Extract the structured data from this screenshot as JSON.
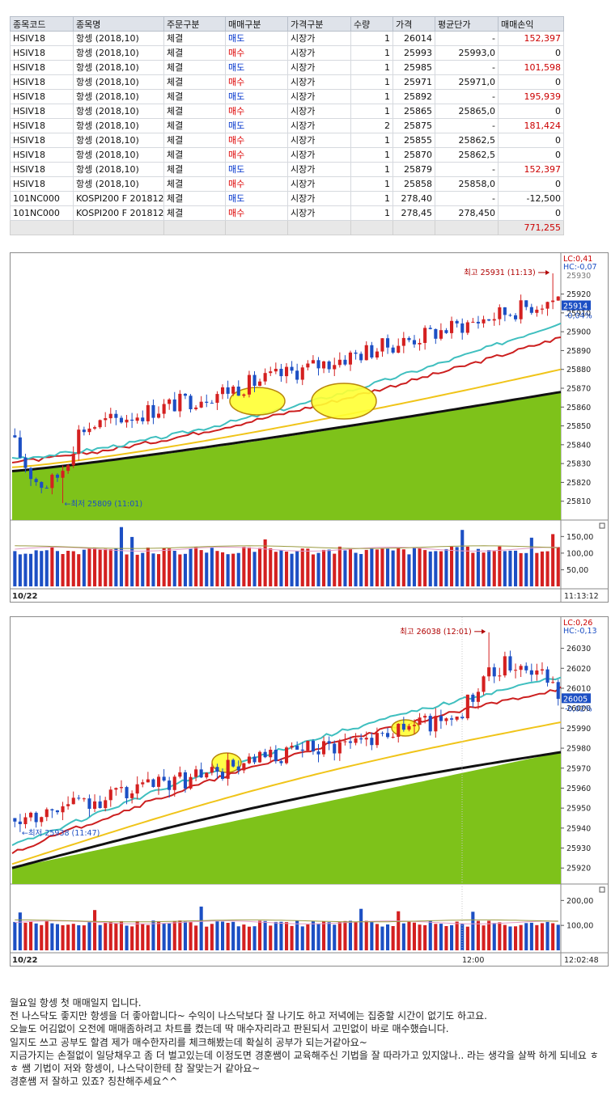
{
  "trades": {
    "columns": [
      "종목코드",
      "종목명",
      "주문구분",
      "매매구분",
      "가격구분",
      "수량",
      "가격",
      "평균단가",
      "매매손익"
    ],
    "rows": [
      [
        "HSIV18",
        "항셍 (2018,10)",
        "체결",
        "매도",
        "시장가",
        "1",
        "26014",
        "-",
        "152,397"
      ],
      [
        "HSIV18",
        "항셍 (2018,10)",
        "체결",
        "매수",
        "시장가",
        "1",
        "25993",
        "25993,0",
        "0"
      ],
      [
        "HSIV18",
        "항셍 (2018,10)",
        "체결",
        "매도",
        "시장가",
        "1",
        "25985",
        "-",
        "101,598"
      ],
      [
        "HSIV18",
        "항셍 (2018,10)",
        "체결",
        "매수",
        "시장가",
        "1",
        "25971",
        "25971,0",
        "0"
      ],
      [
        "HSIV18",
        "항셍 (2018,10)",
        "체결",
        "매도",
        "시장가",
        "1",
        "25892",
        "-",
        "195,939"
      ],
      [
        "HSIV18",
        "항셍 (2018,10)",
        "체결",
        "매수",
        "시장가",
        "1",
        "25865",
        "25865,0",
        "0"
      ],
      [
        "HSIV18",
        "항셍 (2018,10)",
        "체결",
        "매도",
        "시장가",
        "2",
        "25875",
        "-",
        "181,424"
      ],
      [
        "HSIV18",
        "항셍 (2018,10)",
        "체결",
        "매수",
        "시장가",
        "1",
        "25855",
        "25862,5",
        "0"
      ],
      [
        "HSIV18",
        "항셍 (2018,10)",
        "체결",
        "매수",
        "시장가",
        "1",
        "25870",
        "25862,5",
        "0"
      ],
      [
        "HSIV18",
        "항셍 (2018,10)",
        "체결",
        "매도",
        "시장가",
        "1",
        "25879",
        "-",
        "152,397"
      ],
      [
        "HSIV18",
        "항셍 (2018,10)",
        "체결",
        "매수",
        "시장가",
        "1",
        "25858",
        "25858,0",
        "0"
      ],
      [
        "101NC000",
        "KOSPI200 F 201812",
        "체결",
        "매도",
        "시장가",
        "1",
        "278,40",
        "-",
        "-12,500"
      ],
      [
        "101NC000",
        "KOSPI200 F 201812",
        "체결",
        "매수",
        "시장가",
        "1",
        "278,45",
        "278,450",
        "0"
      ]
    ],
    "total": "771,255"
  },
  "chart_data": [
    {
      "type": "candlestick",
      "date_label": "10/22",
      "time_label": "11:13:12",
      "lc_label": "LC:0,41",
      "hc_label": "HC:-0,07",
      "current_price": "25914",
      "current_change": "-0,04%",
      "high_label": "최고 25931 (11:13)",
      "low_label": "←최저 25809 (11:01)",
      "high_value": 25931,
      "low_value": 25809,
      "ylim": [
        25800,
        25940
      ],
      "y_ticks": [
        25810,
        25820,
        25830,
        25840,
        25850,
        25860,
        25870,
        25880,
        25890,
        25900,
        25910,
        25920
      ],
      "top_tick_label": "25930",
      "volume_ticks": [
        "150,00",
        "100,00",
        "50,00"
      ],
      "volume_ylim": [
        0,
        180
      ]
    },
    {
      "type": "candlestick",
      "date_label": "10/22",
      "time_label": "12:02:48",
      "mid_time_label": "12:00",
      "lc_label": "LC:0,26",
      "hc_label": "HC:-0,13",
      "current_price": "26005",
      "current_change": "-0,02%",
      "high_label": "최고 26038 (12:01)",
      "low_label": "←최저 25938 (11:47)",
      "high_value": 26038,
      "low_value": 25938,
      "ylim": [
        25912,
        26044
      ],
      "y_ticks": [
        25920,
        25930,
        25940,
        25950,
        25960,
        25970,
        25980,
        25990,
        26000,
        26010,
        26020,
        26030
      ],
      "volume_ticks": [
        "200,00",
        "100,00"
      ],
      "volume_ylim": [
        0,
        240
      ]
    }
  ],
  "colors": {
    "up": "#d42020",
    "down": "#1c4fc4",
    "ma_fast": "#3fbfbf",
    "ma_mid": "#cc1f1f",
    "ma_slow": "#f0c419",
    "ma_long": "#111111",
    "fill": "#7ec21a",
    "highlight": "#ffff33"
  },
  "blog": [
    "월요일 항셍 첫 매매일지 입니다.",
    "전 나스닥도 좋지만 항셍을 더 좋아합니다~ 수익이 나스닥보다 잘 나기도 하고 저녁에는 집중할 시간이 없기도 하고요.",
    "오늘도 어김없이 오전에 매매좀하려고 차트를 켰는데 딱 매수자리라고 판된되서 고민없이 바로 매수했습니다.",
    "일지도 쓰고 공부도 할겸 제가 매수한자리를 체크해봤는데 확실히 공부가 되는거같아요~",
    "지금가지는 손절없이 일당채우고 좀 더 벌고있는데 이정도면 경훈쌤이 교육해주신 기법을 잘 따라가고 있지않나.. 라는 생각을 살짝 하게 되네요 ㅎㅎ 쌤 기법이 저와 항셍이, 나스닥이한테 참 잘맞는거 같아요~",
    "경훈쌤 저 잘하고 있죠? 칭찬해주세요^^"
  ]
}
